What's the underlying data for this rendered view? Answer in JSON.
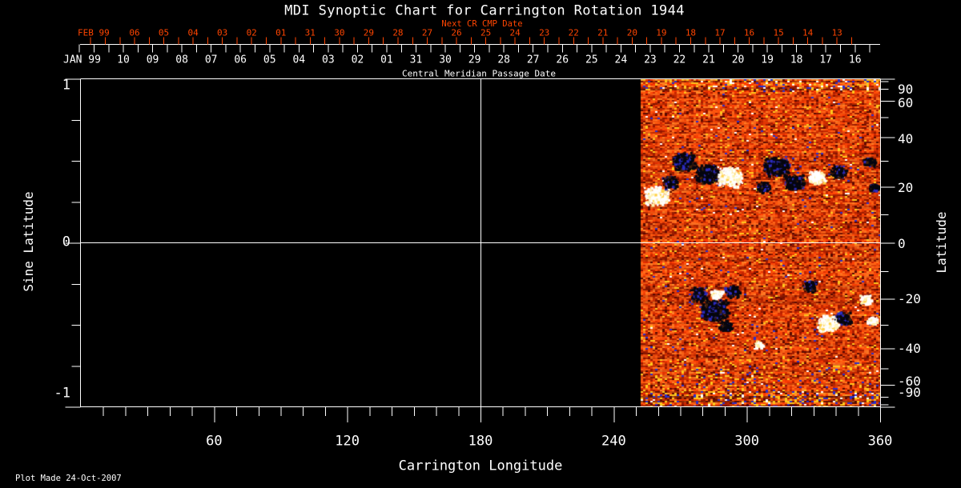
{
  "title": "MDI Synoptic Chart for Carrington Rotation 1944",
  "plot_made": "Plot Made 24-Oct-2007",
  "colors": {
    "background": "#000000",
    "foreground": "#FFFFFF",
    "next_cr_accent": "#FF4500"
  },
  "axes": {
    "top_next_cr": {
      "label": "Next CR CMP Date",
      "month_label": "FEB 99",
      "days": [
        "06",
        "05",
        "04",
        "03",
        "02",
        "01",
        "31",
        "30",
        "29",
        "28",
        "27",
        "26",
        "25",
        "24",
        "23",
        "22",
        "21",
        "20",
        "19",
        "18",
        "17",
        "16",
        "15",
        "14",
        "13"
      ]
    },
    "top_cmp": {
      "label": "Central Meridian Passage Date",
      "month_label": "JAN 99",
      "days": [
        "10",
        "09",
        "08",
        "07",
        "06",
        "05",
        "04",
        "03",
        "02",
        "01",
        "31",
        "30",
        "29",
        "28",
        "27",
        "26",
        "25",
        "24",
        "23",
        "22",
        "21",
        "20",
        "19",
        "18",
        "17",
        "16"
      ]
    },
    "bottom": {
      "label": "Carrington Longitude",
      "tick_labels": [
        "60",
        "120",
        "180",
        "240",
        "300",
        "360"
      ]
    },
    "left": {
      "label": "Sine Latitude",
      "tick_labels": [
        "1",
        "0",
        "-1"
      ]
    },
    "right": {
      "label": "Latitude",
      "tick_labels": [
        "90",
        "60",
        "40",
        "20",
        "0",
        "-20",
        "-40",
        "-60",
        "-90"
      ]
    }
  },
  "chart_data": {
    "type": "heatmap",
    "title": "MDI Synoptic Chart for Carrington Rotation 1944",
    "xlabel": "Carrington Longitude",
    "ylabel_left": "Sine Latitude",
    "ylabel_right": "Latitude",
    "xlim": [
      0,
      360
    ],
    "ylim_sine": [
      -1,
      1
    ],
    "x_major_ticks": [
      60,
      120,
      180,
      240,
      300,
      360
    ],
    "x_minor_step_deg": 10,
    "left_major_ticks": [
      1,
      0,
      -1
    ],
    "left_minor_step": 0.25,
    "right_labeled_ticks_deg": [
      90,
      60,
      40,
      20,
      0,
      -20,
      -40,
      -60,
      -90
    ],
    "right_minor_ticks_deg": [
      80,
      70,
      50,
      30,
      10,
      -10,
      -30,
      -50,
      -70,
      -80
    ],
    "grid_lines": {
      "vertical_at_longitude": 180,
      "horizontal_at_sine": 0
    },
    "data_coverage_longitude": [
      252,
      360
    ],
    "no_data_fill": "#000000",
    "polar_noise_bands": true,
    "palette": {
      "base": [
        "#7E1200",
        "#C22600",
        "#E83E06",
        "#FF5A12",
        "#FF7B28"
      ],
      "speck_yellow": "#FFC61C",
      "speck_white": "#FFFFFF",
      "speck_dark": "#580A00",
      "speck_blue": "#2A2ECC",
      "negative_core": "#06060F",
      "negative_edge": "#2B2BBE",
      "negative_umbra": "#43240A",
      "positive_core": "#FFFFFF",
      "positive_edge": "#FFF2AE",
      "positive_umbra": "#FFD24A"
    },
    "active_regions": [
      {
        "lon": 259,
        "lat": 17,
        "polarity": "positive",
        "r": 14
      },
      {
        "lon": 265,
        "lat": 22,
        "polarity": "negative",
        "r": 9
      },
      {
        "lon": 271,
        "lat": 30,
        "polarity": "negative",
        "r": 13
      },
      {
        "lon": 282,
        "lat": 25,
        "polarity": "negative",
        "r": 14
      },
      {
        "lon": 292,
        "lat": 24,
        "polarity": "positive",
        "r": 14
      },
      {
        "lon": 307,
        "lat": 20,
        "polarity": "negative",
        "r": 8
      },
      {
        "lon": 313,
        "lat": 28,
        "polarity": "negative",
        "r": 15
      },
      {
        "lon": 321,
        "lat": 22,
        "polarity": "negative",
        "r": 11
      },
      {
        "lon": 331,
        "lat": 24,
        "polarity": "positive",
        "r": 10
      },
      {
        "lon": 341,
        "lat": 26,
        "polarity": "negative",
        "r": 9
      },
      {
        "lon": 355,
        "lat": 30,
        "polarity": "negative",
        "r": 7
      },
      {
        "lon": 357,
        "lat": 20,
        "polarity": "negative",
        "r": 6
      },
      {
        "lon": 278,
        "lat": -18,
        "polarity": "negative",
        "r": 10
      },
      {
        "lon": 285,
        "lat": -24,
        "polarity": "negative",
        "r": 16
      },
      {
        "lon": 286,
        "lat": -18,
        "polarity": "positive",
        "r": 7
      },
      {
        "lon": 290,
        "lat": -30,
        "polarity": "negative",
        "r": 8
      },
      {
        "lon": 293,
        "lat": -17,
        "polarity": "negative",
        "r": 9
      },
      {
        "lon": 305,
        "lat": -38,
        "polarity": "positive",
        "r": 5
      },
      {
        "lon": 328,
        "lat": -15,
        "polarity": "negative",
        "r": 8
      },
      {
        "lon": 336,
        "lat": -29,
        "polarity": "positive",
        "r": 12
      },
      {
        "lon": 343,
        "lat": -27,
        "polarity": "negative",
        "r": 9
      },
      {
        "lon": 353,
        "lat": -20,
        "polarity": "positive",
        "r": 7
      },
      {
        "lon": 356,
        "lat": -28,
        "polarity": "positive",
        "r": 6
      }
    ]
  }
}
